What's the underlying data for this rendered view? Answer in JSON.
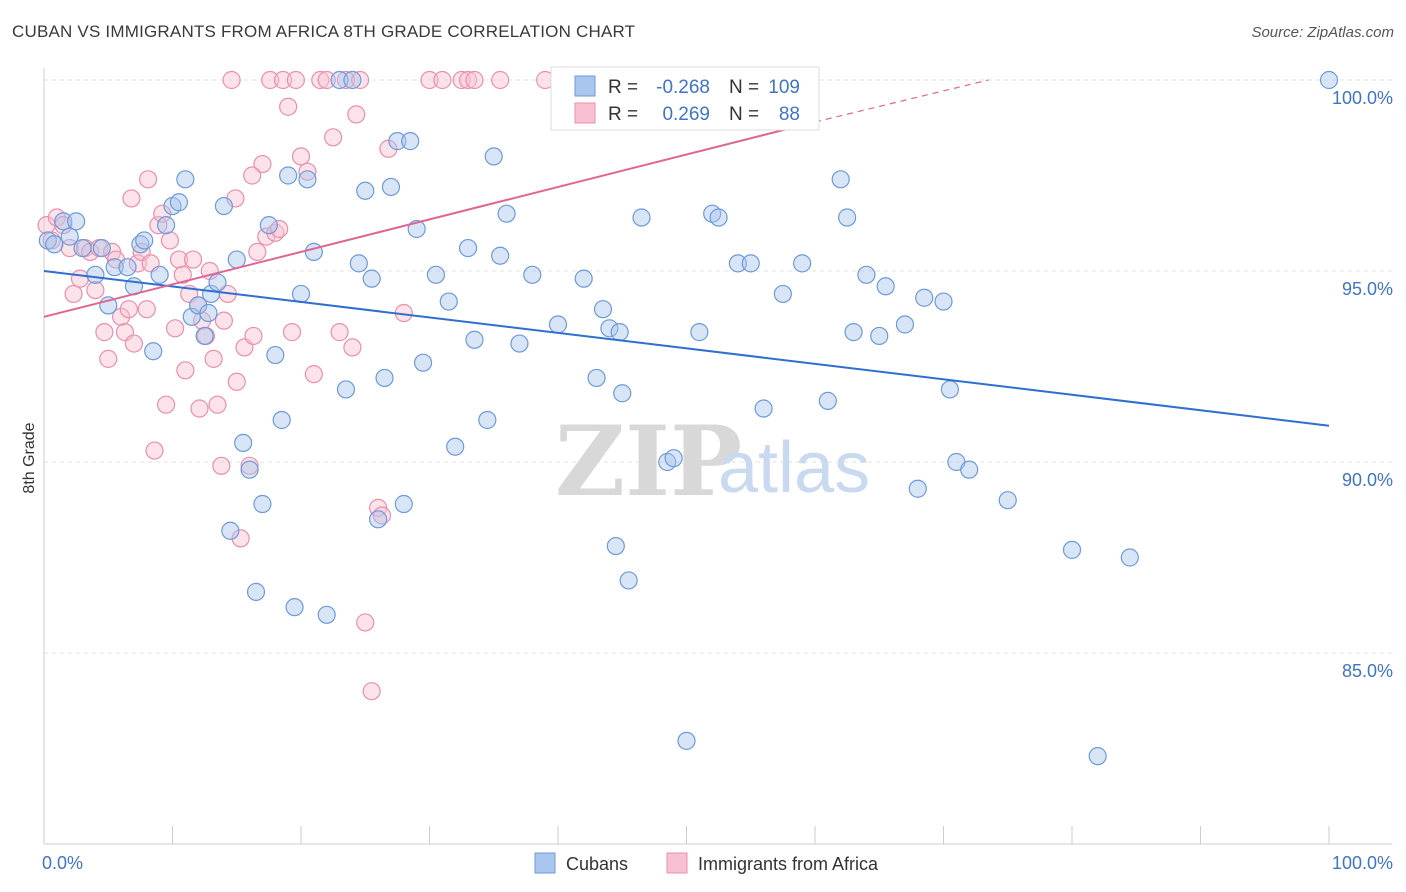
{
  "header": {
    "title": "CUBAN VS IMMIGRANTS FROM AFRICA 8TH GRADE CORRELATION CHART",
    "source": "Source: ZipAtlas.com"
  },
  "watermark": {
    "zip": "ZIP",
    "atlas": "atlas"
  },
  "colors": {
    "blue_fill": "#a9c6ee",
    "blue_stroke": "#6e9ad8",
    "blue_line": "#2f6fd0",
    "pink_fill": "#f8c0d1",
    "pink_stroke": "#ea8fae",
    "pink_line": "#e06592",
    "tick_text": "#3f74c6",
    "grid": "#e2e2e2"
  },
  "legend": {
    "r_label": "R =",
    "n_label": "N =",
    "rows": [
      {
        "series": "Cubans",
        "r": "-0.268",
        "n": "109"
      },
      {
        "series": "Immigrants from Africa",
        "r": "0.269",
        "n": "88"
      }
    ]
  },
  "chart_data": {
    "type": "scatter",
    "title": "CUBAN VS IMMIGRANTS FROM AFRICA 8TH GRADE CORRELATION CHART",
    "xlabel": "",
    "ylabel": "8th Grade",
    "xlim": [
      0,
      100
    ],
    "ylim": [
      80.5,
      100.8
    ],
    "x_tick_labels": [
      "0.0%",
      "100.0%"
    ],
    "y_ticks": [
      85,
      90,
      95,
      100
    ],
    "y_tick_labels": [
      "85.0%",
      "90.0%",
      "95.0%",
      "100.0%"
    ],
    "legend_position": "bottom-center",
    "series": [
      {
        "name": "Cubans",
        "color": "#a9c6ee",
        "trend": {
          "x": [
            0,
            100
          ],
          "y": [
            95.0,
            90.95
          ]
        },
        "points": [
          [
            0.3,
            95.8
          ],
          [
            0.8,
            95.7
          ],
          [
            1.5,
            96.3
          ],
          [
            2.0,
            95.9
          ],
          [
            2.5,
            96.3
          ],
          [
            3.0,
            95.6
          ],
          [
            4.0,
            94.9
          ],
          [
            4.5,
            95.6
          ],
          [
            5.0,
            94.1
          ],
          [
            5.5,
            95.1
          ],
          [
            6.5,
            95.1
          ],
          [
            7.0,
            94.6
          ],
          [
            7.5,
            95.7
          ],
          [
            7.8,
            95.8
          ],
          [
            8.5,
            92.9
          ],
          [
            9.0,
            94.9
          ],
          [
            9.5,
            96.2
          ],
          [
            10.0,
            96.7
          ],
          [
            10.5,
            96.8
          ],
          [
            11.0,
            97.4
          ],
          [
            11.5,
            93.8
          ],
          [
            12.0,
            94.1
          ],
          [
            12.5,
            93.3
          ],
          [
            12.8,
            93.9
          ],
          [
            13.0,
            94.4
          ],
          [
            13.5,
            94.7
          ],
          [
            14.0,
            96.7
          ],
          [
            14.5,
            88.2
          ],
          [
            15.0,
            95.3
          ],
          [
            15.5,
            90.5
          ],
          [
            16.0,
            89.8
          ],
          [
            16.5,
            86.6
          ],
          [
            17.0,
            88.9
          ],
          [
            17.5,
            96.2
          ],
          [
            18.0,
            92.8
          ],
          [
            18.5,
            91.1
          ],
          [
            19.0,
            97.5
          ],
          [
            19.5,
            86.2
          ],
          [
            20.0,
            94.4
          ],
          [
            20.5,
            97.4
          ],
          [
            21.0,
            95.5
          ],
          [
            22.0,
            86.0
          ],
          [
            23.0,
            100.0
          ],
          [
            23.5,
            91.9
          ],
          [
            24.0,
            100.0
          ],
          [
            24.5,
            95.2
          ],
          [
            25.0,
            97.1
          ],
          [
            25.5,
            94.8
          ],
          [
            26.0,
            88.5
          ],
          [
            26.5,
            92.2
          ],
          [
            27.0,
            97.2
          ],
          [
            27.5,
            98.4
          ],
          [
            28.0,
            88.9
          ],
          [
            28.5,
            98.4
          ],
          [
            29.0,
            96.1
          ],
          [
            29.5,
            92.6
          ],
          [
            30.5,
            94.9
          ],
          [
            31.5,
            94.2
          ],
          [
            32.0,
            90.4
          ],
          [
            33.0,
            95.6
          ],
          [
            33.5,
            93.2
          ],
          [
            34.5,
            91.1
          ],
          [
            35.0,
            98.0
          ],
          [
            35.5,
            95.4
          ],
          [
            36.0,
            96.5
          ],
          [
            37.0,
            93.1
          ],
          [
            38.0,
            94.9
          ],
          [
            40.0,
            93.6
          ],
          [
            42.0,
            94.8
          ],
          [
            43.0,
            92.2
          ],
          [
            43.5,
            94.0
          ],
          [
            44.0,
            93.5
          ],
          [
            44.5,
            87.8
          ],
          [
            44.8,
            93.4
          ],
          [
            45.0,
            91.8
          ],
          [
            45.5,
            86.9
          ],
          [
            46.5,
            96.4
          ],
          [
            48.5,
            90.0
          ],
          [
            49.0,
            90.1
          ],
          [
            50.0,
            82.7
          ],
          [
            51.0,
            93.4
          ],
          [
            52.0,
            96.5
          ],
          [
            52.5,
            96.4
          ],
          [
            54.0,
            95.2
          ],
          [
            55.0,
            95.2
          ],
          [
            56.0,
            91.4
          ],
          [
            57.5,
            94.4
          ],
          [
            59.0,
            95.2
          ],
          [
            61.0,
            91.6
          ],
          [
            62.0,
            97.4
          ],
          [
            62.5,
            96.4
          ],
          [
            63.0,
            93.4
          ],
          [
            64.0,
            94.9
          ],
          [
            65.0,
            93.3
          ],
          [
            65.5,
            94.6
          ],
          [
            67.0,
            93.6
          ],
          [
            68.0,
            89.3
          ],
          [
            68.5,
            94.3
          ],
          [
            70.0,
            94.2
          ],
          [
            70.5,
            91.9
          ],
          [
            71.0,
            90.0
          ],
          [
            72.0,
            89.8
          ],
          [
            75.0,
            89.0
          ],
          [
            80.0,
            87.7
          ],
          [
            82.0,
            82.3
          ],
          [
            84.5,
            87.5
          ],
          [
            100.0,
            100.0
          ]
        ]
      },
      {
        "name": "Immigrants from Africa",
        "color": "#f8c0d1",
        "trend": {
          "x": [
            0,
            60
          ],
          "y": [
            93.8,
            98.9
          ]
        },
        "trend_dashed": {
          "x": [
            60,
            73.5
          ],
          "y": [
            98.9,
            100.0
          ]
        },
        "points": [
          [
            0.2,
            96.2
          ],
          [
            0.6,
            95.8
          ],
          [
            1.0,
            96.4
          ],
          [
            1.5,
            96.2
          ],
          [
            2.0,
            95.6
          ],
          [
            2.3,
            94.4
          ],
          [
            2.8,
            94.8
          ],
          [
            3.2,
            95.6
          ],
          [
            3.6,
            95.5
          ],
          [
            4.0,
            94.5
          ],
          [
            4.3,
            95.6
          ],
          [
            4.7,
            93.4
          ],
          [
            5.0,
            92.7
          ],
          [
            5.3,
            95.5
          ],
          [
            5.6,
            95.3
          ],
          [
            6.0,
            93.8
          ],
          [
            6.3,
            93.4
          ],
          [
            6.6,
            94.0
          ],
          [
            7.0,
            93.1
          ],
          [
            7.3,
            95.2
          ],
          [
            7.6,
            95.5
          ],
          [
            8.0,
            94.0
          ],
          [
            8.3,
            95.2
          ],
          [
            8.6,
            90.3
          ],
          [
            8.9,
            96.2
          ],
          [
            9.2,
            96.5
          ],
          [
            9.5,
            91.5
          ],
          [
            9.8,
            95.8
          ],
          [
            10.2,
            93.5
          ],
          [
            10.5,
            95.3
          ],
          [
            10.8,
            94.9
          ],
          [
            11.0,
            92.4
          ],
          [
            11.3,
            94.4
          ],
          [
            11.6,
            95.3
          ],
          [
            12.0,
            94.1
          ],
          [
            12.3,
            93.7
          ],
          [
            12.6,
            93.3
          ],
          [
            12.9,
            95.0
          ],
          [
            13.2,
            92.7
          ],
          [
            13.5,
            91.5
          ],
          [
            13.8,
            89.9
          ],
          [
            14.0,
            93.7
          ],
          [
            14.3,
            94.4
          ],
          [
            14.6,
            100.0
          ],
          [
            15.0,
            92.1
          ],
          [
            15.3,
            88.0
          ],
          [
            15.6,
            93.0
          ],
          [
            16.0,
            89.9
          ],
          [
            16.3,
            93.3
          ],
          [
            16.6,
            95.5
          ],
          [
            17.0,
            97.8
          ],
          [
            17.3,
            95.9
          ],
          [
            17.6,
            100.0
          ],
          [
            18.0,
            96.0
          ],
          [
            18.3,
            96.1
          ],
          [
            18.6,
            100.0
          ],
          [
            19.0,
            99.3
          ],
          [
            19.3,
            93.4
          ],
          [
            19.6,
            100.0
          ],
          [
            20.0,
            98.0
          ],
          [
            21.0,
            92.3
          ],
          [
            21.5,
            100.0
          ],
          [
            22.0,
            100.0
          ],
          [
            23.0,
            93.4
          ],
          [
            23.5,
            100.0
          ],
          [
            24.0,
            93.0
          ],
          [
            24.3,
            99.1
          ],
          [
            24.6,
            100.0
          ],
          [
            25.0,
            85.8
          ],
          [
            25.5,
            84.0
          ],
          [
            26.0,
            88.8
          ],
          [
            26.3,
            88.6
          ],
          [
            28.0,
            93.9
          ],
          [
            30.0,
            100.0
          ],
          [
            31.0,
            100.0
          ],
          [
            32.5,
            100.0
          ],
          [
            33.0,
            100.0
          ],
          [
            33.5,
            100.0
          ],
          [
            35.5,
            100.0
          ],
          [
            39.0,
            100.0
          ],
          [
            16.2,
            97.5
          ],
          [
            12.1,
            91.4
          ],
          [
            8.1,
            97.4
          ],
          [
            6.8,
            96.9
          ],
          [
            14.9,
            96.9
          ],
          [
            20.5,
            97.6
          ],
          [
            22.5,
            98.5
          ],
          [
            26.8,
            98.2
          ]
        ]
      }
    ]
  }
}
